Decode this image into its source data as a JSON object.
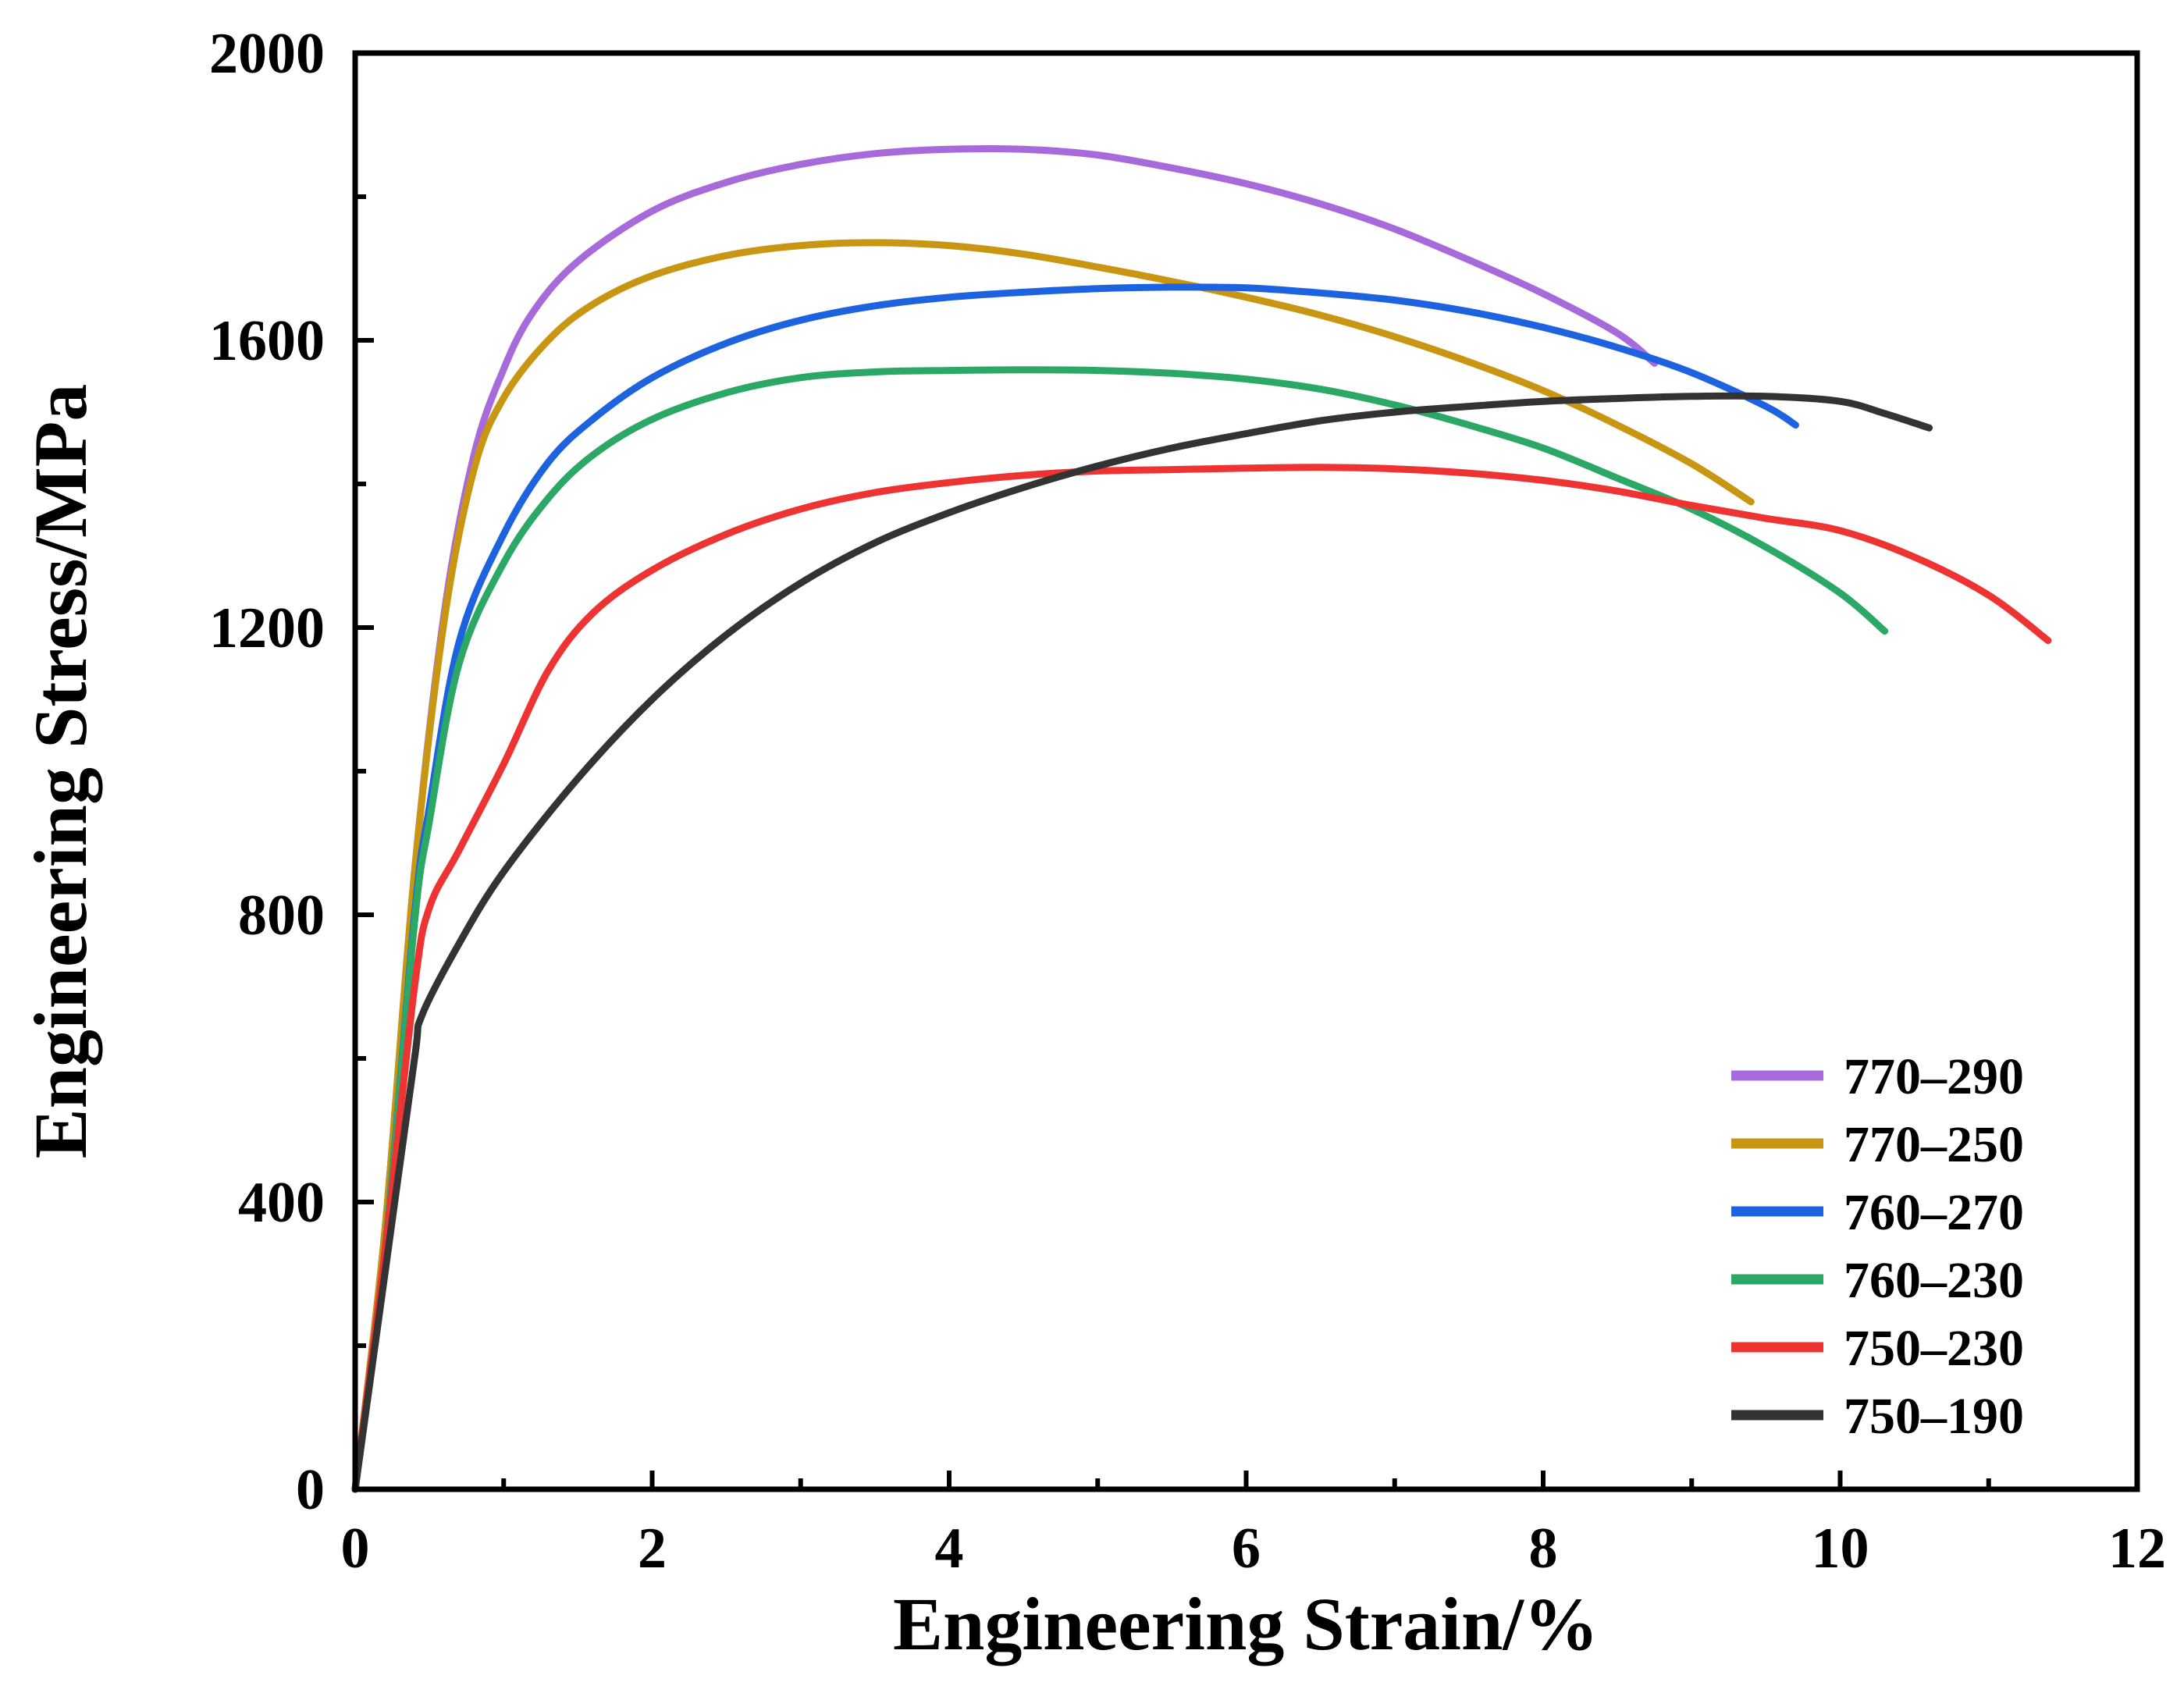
{
  "chart_data": {
    "type": "line",
    "title": "",
    "xlabel": "Engineering Strain/%",
    "ylabel": "Engineering Stress/MPa",
    "xlim": [
      0,
      12
    ],
    "ylim": [
      0,
      2000
    ],
    "xticks": [
      0,
      2,
      4,
      6,
      8,
      10,
      12
    ],
    "yticks": [
      0,
      400,
      800,
      1200,
      1600,
      2000
    ],
    "xtick_labels": [
      "0",
      "2",
      "4",
      "6",
      "8",
      "10",
      "12"
    ],
    "ytick_labels": [
      "0",
      "400",
      "800",
      "1200",
      "1600",
      "2000"
    ],
    "grid": false,
    "legend_position": "bottom-right",
    "series": [
      {
        "name": "770–290",
        "color": "#A66ADB",
        "points": [
          [
            0,
            0
          ],
          [
            0.2,
            360
          ],
          [
            0.4,
            860
          ],
          [
            0.6,
            1220
          ],
          [
            0.8,
            1440
          ],
          [
            1.0,
            1560
          ],
          [
            1.2,
            1640
          ],
          [
            1.5,
            1710
          ],
          [
            2.0,
            1780
          ],
          [
            2.5,
            1820
          ],
          [
            3.0,
            1845
          ],
          [
            3.5,
            1860
          ],
          [
            4.0,
            1866
          ],
          [
            4.5,
            1866
          ],
          [
            5.0,
            1858
          ],
          [
            5.5,
            1840
          ],
          [
            6.0,
            1818
          ],
          [
            6.5,
            1790
          ],
          [
            7.0,
            1755
          ],
          [
            7.5,
            1712
          ],
          [
            8.0,
            1665
          ],
          [
            8.5,
            1610
          ],
          [
            8.75,
            1568
          ]
        ]
      },
      {
        "name": "770–250",
        "color": "#C89612",
        "points": [
          [
            0,
            0
          ],
          [
            0.2,
            360
          ],
          [
            0.4,
            860
          ],
          [
            0.6,
            1210
          ],
          [
            0.8,
            1420
          ],
          [
            1.0,
            1520
          ],
          [
            1.3,
            1600
          ],
          [
            1.6,
            1650
          ],
          [
            2.0,
            1690
          ],
          [
            2.5,
            1718
          ],
          [
            3.0,
            1732
          ],
          [
            3.5,
            1736
          ],
          [
            4.0,
            1732
          ],
          [
            4.5,
            1720
          ],
          [
            5.0,
            1702
          ],
          [
            5.5,
            1682
          ],
          [
            6.0,
            1660
          ],
          [
            6.5,
            1635
          ],
          [
            7.0,
            1605
          ],
          [
            7.5,
            1570
          ],
          [
            8.0,
            1530
          ],
          [
            8.5,
            1482
          ],
          [
            9.0,
            1428
          ],
          [
            9.4,
            1375
          ]
        ]
      },
      {
        "name": "760–270",
        "color": "#1D63E0",
        "points": [
          [
            0,
            0
          ],
          [
            0.2,
            330
          ],
          [
            0.4,
            800
          ],
          [
            0.5,
            950
          ],
          [
            0.7,
            1180
          ],
          [
            1.0,
            1330
          ],
          [
            1.3,
            1430
          ],
          [
            1.6,
            1490
          ],
          [
            2.0,
            1548
          ],
          [
            2.5,
            1596
          ],
          [
            3.0,
            1628
          ],
          [
            3.5,
            1648
          ],
          [
            4.0,
            1660
          ],
          [
            4.5,
            1667
          ],
          [
            5.0,
            1672
          ],
          [
            5.5,
            1674
          ],
          [
            6.0,
            1673
          ],
          [
            6.5,
            1666
          ],
          [
            7.0,
            1656
          ],
          [
            7.5,
            1640
          ],
          [
            8.0,
            1618
          ],
          [
            8.5,
            1590
          ],
          [
            9.0,
            1555
          ],
          [
            9.5,
            1508
          ],
          [
            9.7,
            1482
          ]
        ]
      },
      {
        "name": "760–230",
        "color": "#2BA865",
        "points": [
          [
            0,
            0
          ],
          [
            0.2,
            330
          ],
          [
            0.4,
            790
          ],
          [
            0.5,
            930
          ],
          [
            0.7,
            1150
          ],
          [
            1.0,
            1290
          ],
          [
            1.3,
            1380
          ],
          [
            1.6,
            1440
          ],
          [
            2.0,
            1490
          ],
          [
            2.5,
            1527
          ],
          [
            3.0,
            1548
          ],
          [
            3.5,
            1556
          ],
          [
            4.0,
            1558
          ],
          [
            4.5,
            1559
          ],
          [
            5.0,
            1558
          ],
          [
            5.5,
            1554
          ],
          [
            6.0,
            1546
          ],
          [
            6.5,
            1532
          ],
          [
            7.0,
            1510
          ],
          [
            7.5,
            1482
          ],
          [
            8.0,
            1450
          ],
          [
            8.5,
            1408
          ],
          [
            9.0,
            1365
          ],
          [
            9.5,
            1312
          ],
          [
            10.0,
            1248
          ],
          [
            10.3,
            1195
          ]
        ]
      },
      {
        "name": "750–230",
        "color": "#EE3333",
        "points": [
          [
            0,
            0
          ],
          [
            0.2,
            330
          ],
          [
            0.4,
            700
          ],
          [
            0.5,
            810
          ],
          [
            0.7,
            890
          ],
          [
            1.0,
            1010
          ],
          [
            1.3,
            1140
          ],
          [
            1.6,
            1220
          ],
          [
            2.0,
            1280
          ],
          [
            2.5,
            1330
          ],
          [
            3.0,
            1365
          ],
          [
            3.5,
            1388
          ],
          [
            4.0,
            1402
          ],
          [
            4.5,
            1412
          ],
          [
            5.0,
            1418
          ],
          [
            5.5,
            1420
          ],
          [
            6.0,
            1422
          ],
          [
            6.5,
            1423
          ],
          [
            7.0,
            1421
          ],
          [
            7.5,
            1415
          ],
          [
            8.0,
            1405
          ],
          [
            8.5,
            1390
          ],
          [
            9.0,
            1370
          ],
          [
            9.5,
            1352
          ],
          [
            10.0,
            1335
          ],
          [
            10.5,
            1298
          ],
          [
            11.0,
            1245
          ],
          [
            11.4,
            1182
          ]
        ]
      },
      {
        "name": "750–190",
        "color": "#333333",
        "points": [
          [
            0,
            0
          ],
          [
            0.2,
            300
          ],
          [
            0.4,
            600
          ],
          [
            0.45,
            660
          ],
          [
            0.7,
            760
          ],
          [
            1.0,
            860
          ],
          [
            1.5,
            990
          ],
          [
            2.0,
            1100
          ],
          [
            2.5,
            1190
          ],
          [
            3.0,
            1262
          ],
          [
            3.5,
            1318
          ],
          [
            4.0,
            1360
          ],
          [
            4.5,
            1395
          ],
          [
            5.0,
            1425
          ],
          [
            5.5,
            1450
          ],
          [
            6.0,
            1470
          ],
          [
            6.5,
            1488
          ],
          [
            7.0,
            1500
          ],
          [
            7.5,
            1508
          ],
          [
            8.0,
            1515
          ],
          [
            8.5,
            1519
          ],
          [
            9.0,
            1522
          ],
          [
            9.5,
            1522
          ],
          [
            10.0,
            1515
          ],
          [
            10.3,
            1498
          ],
          [
            10.6,
            1478
          ]
        ]
      }
    ]
  }
}
